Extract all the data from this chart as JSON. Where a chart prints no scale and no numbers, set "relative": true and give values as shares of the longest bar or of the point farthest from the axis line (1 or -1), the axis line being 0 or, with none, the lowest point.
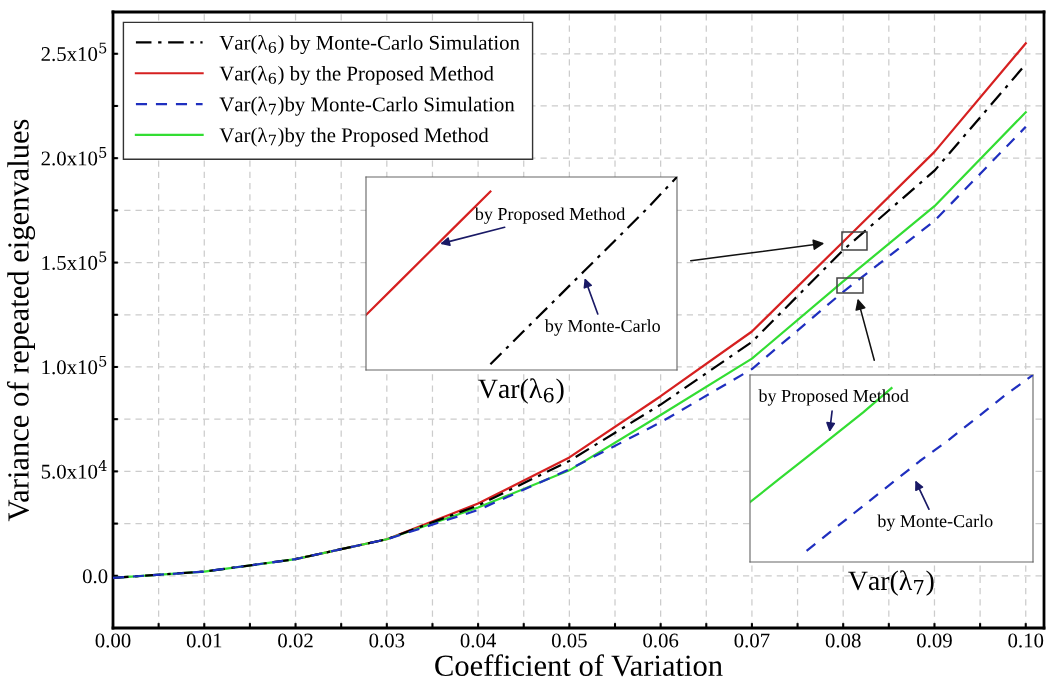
{
  "chart_data": [
    {
      "type": "line",
      "xlabel": "Coefficient of Variation",
      "ylabel": "Variance of repeated eigenvalues",
      "x": [
        0.0,
        0.01,
        0.02,
        0.03,
        0.04,
        0.05,
        0.06,
        0.07,
        0.08,
        0.09,
        0.1
      ],
      "series": [
        {
          "name": "Var(λ$_{6}$) by Monte-Carlo Simulation",
          "color": "#000000",
          "line_style": "dashdot",
          "values": [
            -1000,
            2000,
            8000,
            17500,
            33700,
            55000,
            82000,
            112000,
            156000,
            194000,
            245000
          ]
        },
        {
          "name": "Var(λ$_{6}$) by the Proposed Method",
          "color": "#d62020",
          "line_style": "solid",
          "values": [
            null,
            null,
            8000,
            17500,
            34600,
            56700,
            86000,
            117000,
            160000,
            203000,
            255000
          ]
        },
        {
          "name": "Var(λ$_{7}$)by Monte-Carlo Simulation",
          "color": "#1f2fbf",
          "line_style": "dashed",
          "values": [
            -1000,
            2000,
            8000,
            17500,
            31500,
            51000,
            73500,
            99000,
            136000,
            170000,
            215000
          ]
        },
        {
          "name": "Var(λ$_{7}$)by the Proposed Method",
          "color": "#33dd33",
          "line_style": "solid",
          "values": [
            -1000,
            2000,
            8000,
            17500,
            32700,
            50500,
            77000,
            104000,
            141000,
            177000,
            222000
          ]
        }
      ],
      "xlim": [
        0,
        0.102
      ],
      "ylim": [
        -25000,
        270000
      ],
      "xticks": [
        {
          "value": 0,
          "label": "0.00"
        },
        {
          "value": 0.005,
          "label": null
        },
        {
          "value": 0.01,
          "label": "0.01"
        },
        {
          "value": 0.015,
          "label": null
        },
        {
          "value": 0.02,
          "label": "0.02"
        },
        {
          "value": 0.025,
          "label": null
        },
        {
          "value": 0.03,
          "label": "0.03"
        },
        {
          "value": 0.035,
          "label": null
        },
        {
          "value": 0.04,
          "label": "0.04"
        },
        {
          "value": 0.045,
          "label": null
        },
        {
          "value": 0.05,
          "label": "0.05"
        },
        {
          "value": 0.055,
          "label": null
        },
        {
          "value": 0.06,
          "label": "0.06"
        },
        {
          "value": 0.065,
          "label": null
        },
        {
          "value": 0.07,
          "label": "0.07"
        },
        {
          "value": 0.075,
          "label": null
        },
        {
          "value": 0.08,
          "label": "0.08"
        },
        {
          "value": 0.085,
          "label": null
        },
        {
          "value": 0.09,
          "label": "0.09"
        },
        {
          "value": 0.095,
          "label": null
        },
        {
          "value": 0.1,
          "label": "0.10"
        }
      ],
      "yticks": [
        {
          "value": 0,
          "label": "0.0"
        },
        {
          "value": 25000,
          "label": null
        },
        {
          "value": 50000,
          "label": "5.0x10$^{4}$"
        },
        {
          "value": 75000,
          "label": null
        },
        {
          "value": 100000,
          "label": "1.0x10$^{5}$"
        },
        {
          "value": 125000,
          "label": null
        },
        {
          "value": 150000,
          "label": "1.5x10$^{5}$"
        },
        {
          "value": 175000,
          "label": null
        },
        {
          "value": 200000,
          "label": "2.0x10$^{5}$"
        },
        {
          "value": 225000,
          "label": null
        },
        {
          "value": 250000,
          "label": "2.5x10$^{5}$"
        }
      ],
      "grid": true,
      "legend": "top left"
    },
    {
      "type": "line",
      "relative": true,
      "xlabel": "Var(λ$_{6}$)",
      "categories": [
        null,
        null,
        null,
        null,
        null,
        null,
        null,
        null,
        null,
        null,
        null
      ],
      "series": [
        {
          "color": "#d62020",
          "line_style": "solid",
          "values": [
            0.285,
            0.445,
            0.605,
            0.765,
            0.925,
            null,
            null,
            null,
            null,
            null,
            null
          ]
        },
        {
          "color": "#000000",
          "line_style": "dashdot",
          "values": [
            null,
            null,
            null,
            null,
            0.03,
            0.19,
            0.35,
            0.51,
            0.67,
            0.83,
            1.0
          ]
        }
      ],
      "annotations": [
        "by Proposed Method",
        "by Monte-Carlo"
      ]
    },
    {
      "type": "line",
      "relative": true,
      "xlabel": "Var(λ$_{7}$)",
      "categories": [
        null,
        null,
        null,
        null,
        null,
        null,
        null,
        null,
        null,
        null,
        null
      ],
      "series": [
        {
          "color": "#33dd33",
          "line_style": "solid",
          "values": [
            0.32,
            0.44,
            0.56,
            0.68,
            0.8,
            0.93,
            null,
            null,
            null,
            null,
            null
          ]
        },
        {
          "color": "#1f2fbf",
          "line_style": "dashed",
          "values": [
            null,
            null,
            0.06,
            0.18,
            0.3,
            0.42,
            0.54,
            0.65,
            0.77,
            0.89,
            1.0
          ]
        }
      ],
      "annotations": [
        "by Proposed Method",
        "by Monte-Carlo"
      ]
    }
  ]
}
